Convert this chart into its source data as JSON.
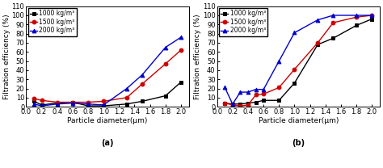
{
  "panel_a": {
    "x": [
      0.1,
      0.2,
      0.4,
      0.6,
      0.8,
      1.0,
      1.3,
      1.5,
      1.8,
      2.0
    ],
    "series": {
      "1000": [
        6,
        2,
        4,
        5,
        1,
        1,
        3,
        6,
        12,
        27
      ],
      "1500": [
        9,
        7,
        5,
        5,
        5,
        6,
        10,
        25,
        47,
        62
      ],
      "2000": [
        3,
        1,
        3,
        4,
        3,
        2,
        20,
        35,
        65,
        76
      ]
    },
    "xlabel": "Particle diameter(μm)",
    "ylabel": "Filtration efficiency (%)",
    "label": "(a)",
    "ylim": [
      0,
      110
    ],
    "yticks": [
      0,
      10,
      20,
      30,
      40,
      50,
      60,
      70,
      80,
      90,
      100,
      110
    ],
    "xlim": [
      0.0,
      2.1
    ],
    "xticks": [
      0.0,
      0.2,
      0.4,
      0.6,
      0.8,
      1.0,
      1.2,
      1.4,
      1.6,
      1.8,
      2.0
    ]
  },
  "panel_b": {
    "x": [
      0.1,
      0.2,
      0.3,
      0.4,
      0.5,
      0.6,
      0.8,
      1.0,
      1.3,
      1.5,
      1.8,
      2.0
    ],
    "series": {
      "1000": [
        4,
        3,
        3,
        4,
        5,
        7,
        7,
        26,
        68,
        75,
        89,
        96
      ],
      "1500": [
        4,
        2,
        1,
        2,
        13,
        14,
        21,
        41,
        70,
        92,
        98,
        100
      ],
      "2000": [
        21,
        3,
        16,
        16,
        19,
        19,
        50,
        81,
        95,
        100,
        100,
        100
      ]
    },
    "xlabel": "Particle diameter(μm)",
    "ylabel": "Filtration efficiency (%)",
    "label": "(b)",
    "ylim": [
      0,
      110
    ],
    "yticks": [
      0,
      10,
      20,
      30,
      40,
      50,
      60,
      70,
      80,
      90,
      100,
      110
    ],
    "xlim": [
      0.0,
      2.1
    ],
    "xticks": [
      0.0,
      0.2,
      0.4,
      0.6,
      0.8,
      1.0,
      1.2,
      1.4,
      1.6,
      1.8,
      2.0
    ]
  },
  "colors": {
    "1000": "#000000",
    "1500": "#cc0000",
    "2000": "#0000cc"
  },
  "markers": {
    "1000": "s",
    "1500": "o",
    "2000": "^"
  },
  "legend_labels": {
    "1000": "1000 kg/m³",
    "1500": "1500 kg/m³",
    "2000": "2000 kg/m³"
  },
  "linewidth": 1.0,
  "markersize": 3.5,
  "markerfacecolor": {
    "1000": "#000000",
    "1500": "#cc0000",
    "2000": "#0000cc"
  },
  "fontsize_tick": 6,
  "fontsize_label": 6.5,
  "fontsize_legend": 5.5,
  "fontsize_abc": 7
}
